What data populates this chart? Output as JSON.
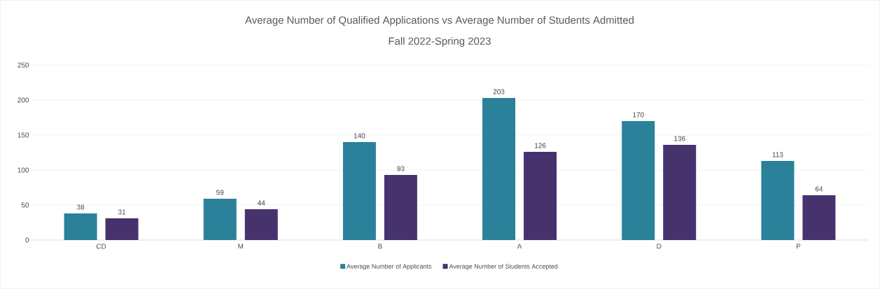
{
  "chart_data": {
    "type": "bar",
    "title": "Average Number of Qualified Applications vs Average Number of Students Admitted",
    "subtitle": "Fall 2022-Spring 2023",
    "categories": [
      "CD",
      "M",
      "B",
      "A",
      "D",
      "P"
    ],
    "series": [
      {
        "name": "Average Number of Applicants",
        "color": "#2a8199",
        "values": [
          38,
          59,
          140,
          203,
          170,
          113
        ]
      },
      {
        "name": "Average Number of Students Accepted",
        "color": "#46326d",
        "values": [
          31,
          44,
          93,
          126,
          136,
          64
        ]
      }
    ],
    "ylim": [
      0,
      250
    ],
    "yticks": [
      0,
      50,
      100,
      150,
      200,
      250
    ],
    "grid": "y",
    "legend": "bottom",
    "data_labels": true
  }
}
